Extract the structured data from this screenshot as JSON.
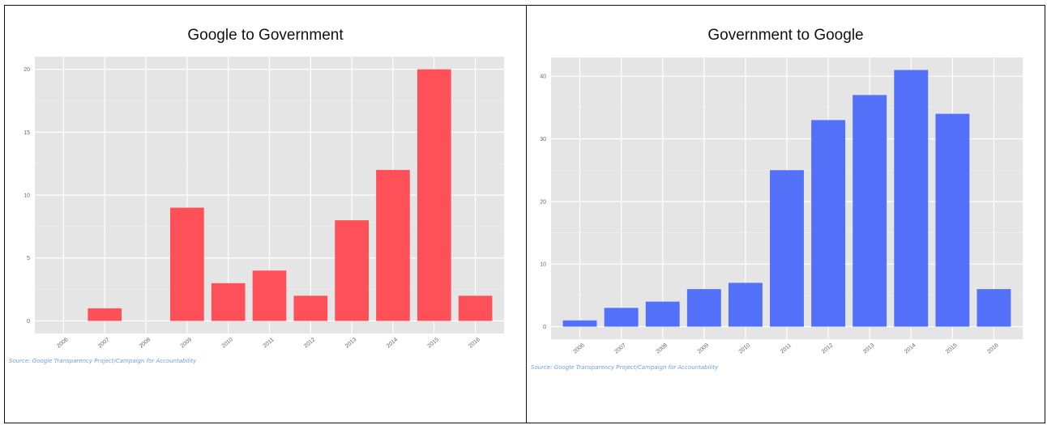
{
  "chart_data": [
    {
      "type": "bar",
      "title": "Google to Government",
      "xlabel": "",
      "ylabel": "",
      "categories": [
        "2006",
        "2007",
        "2008",
        "2009",
        "2010",
        "2011",
        "2012",
        "2013",
        "2014",
        "2015",
        "2016"
      ],
      "values": [
        0,
        1,
        0,
        9,
        3,
        4,
        2,
        8,
        12,
        20,
        2
      ],
      "ylim": [
        -1,
        21
      ],
      "yticks": [
        0,
        5,
        10,
        15,
        20
      ],
      "color": "#fe5059",
      "background": "#e5e5e5",
      "grid": true,
      "source": "Source: Google Transparency Project/Campaign for Accountability"
    },
    {
      "type": "bar",
      "title": "Government to Google",
      "xlabel": "",
      "ylabel": "",
      "categories": [
        "2006",
        "2007",
        "2008",
        "2009",
        "2010",
        "2011",
        "2012",
        "2013",
        "2014",
        "2015",
        "2016"
      ],
      "values": [
        1,
        3,
        4,
        6,
        7,
        25,
        33,
        37,
        41,
        34,
        6
      ],
      "ylim": [
        -2,
        43
      ],
      "yticks": [
        0,
        10,
        20,
        30,
        40
      ],
      "color": "#5371f8",
      "background": "#e5e5e5",
      "grid": true,
      "source": "Source: Google Transparency Project/Campaign for Accountability"
    }
  ]
}
